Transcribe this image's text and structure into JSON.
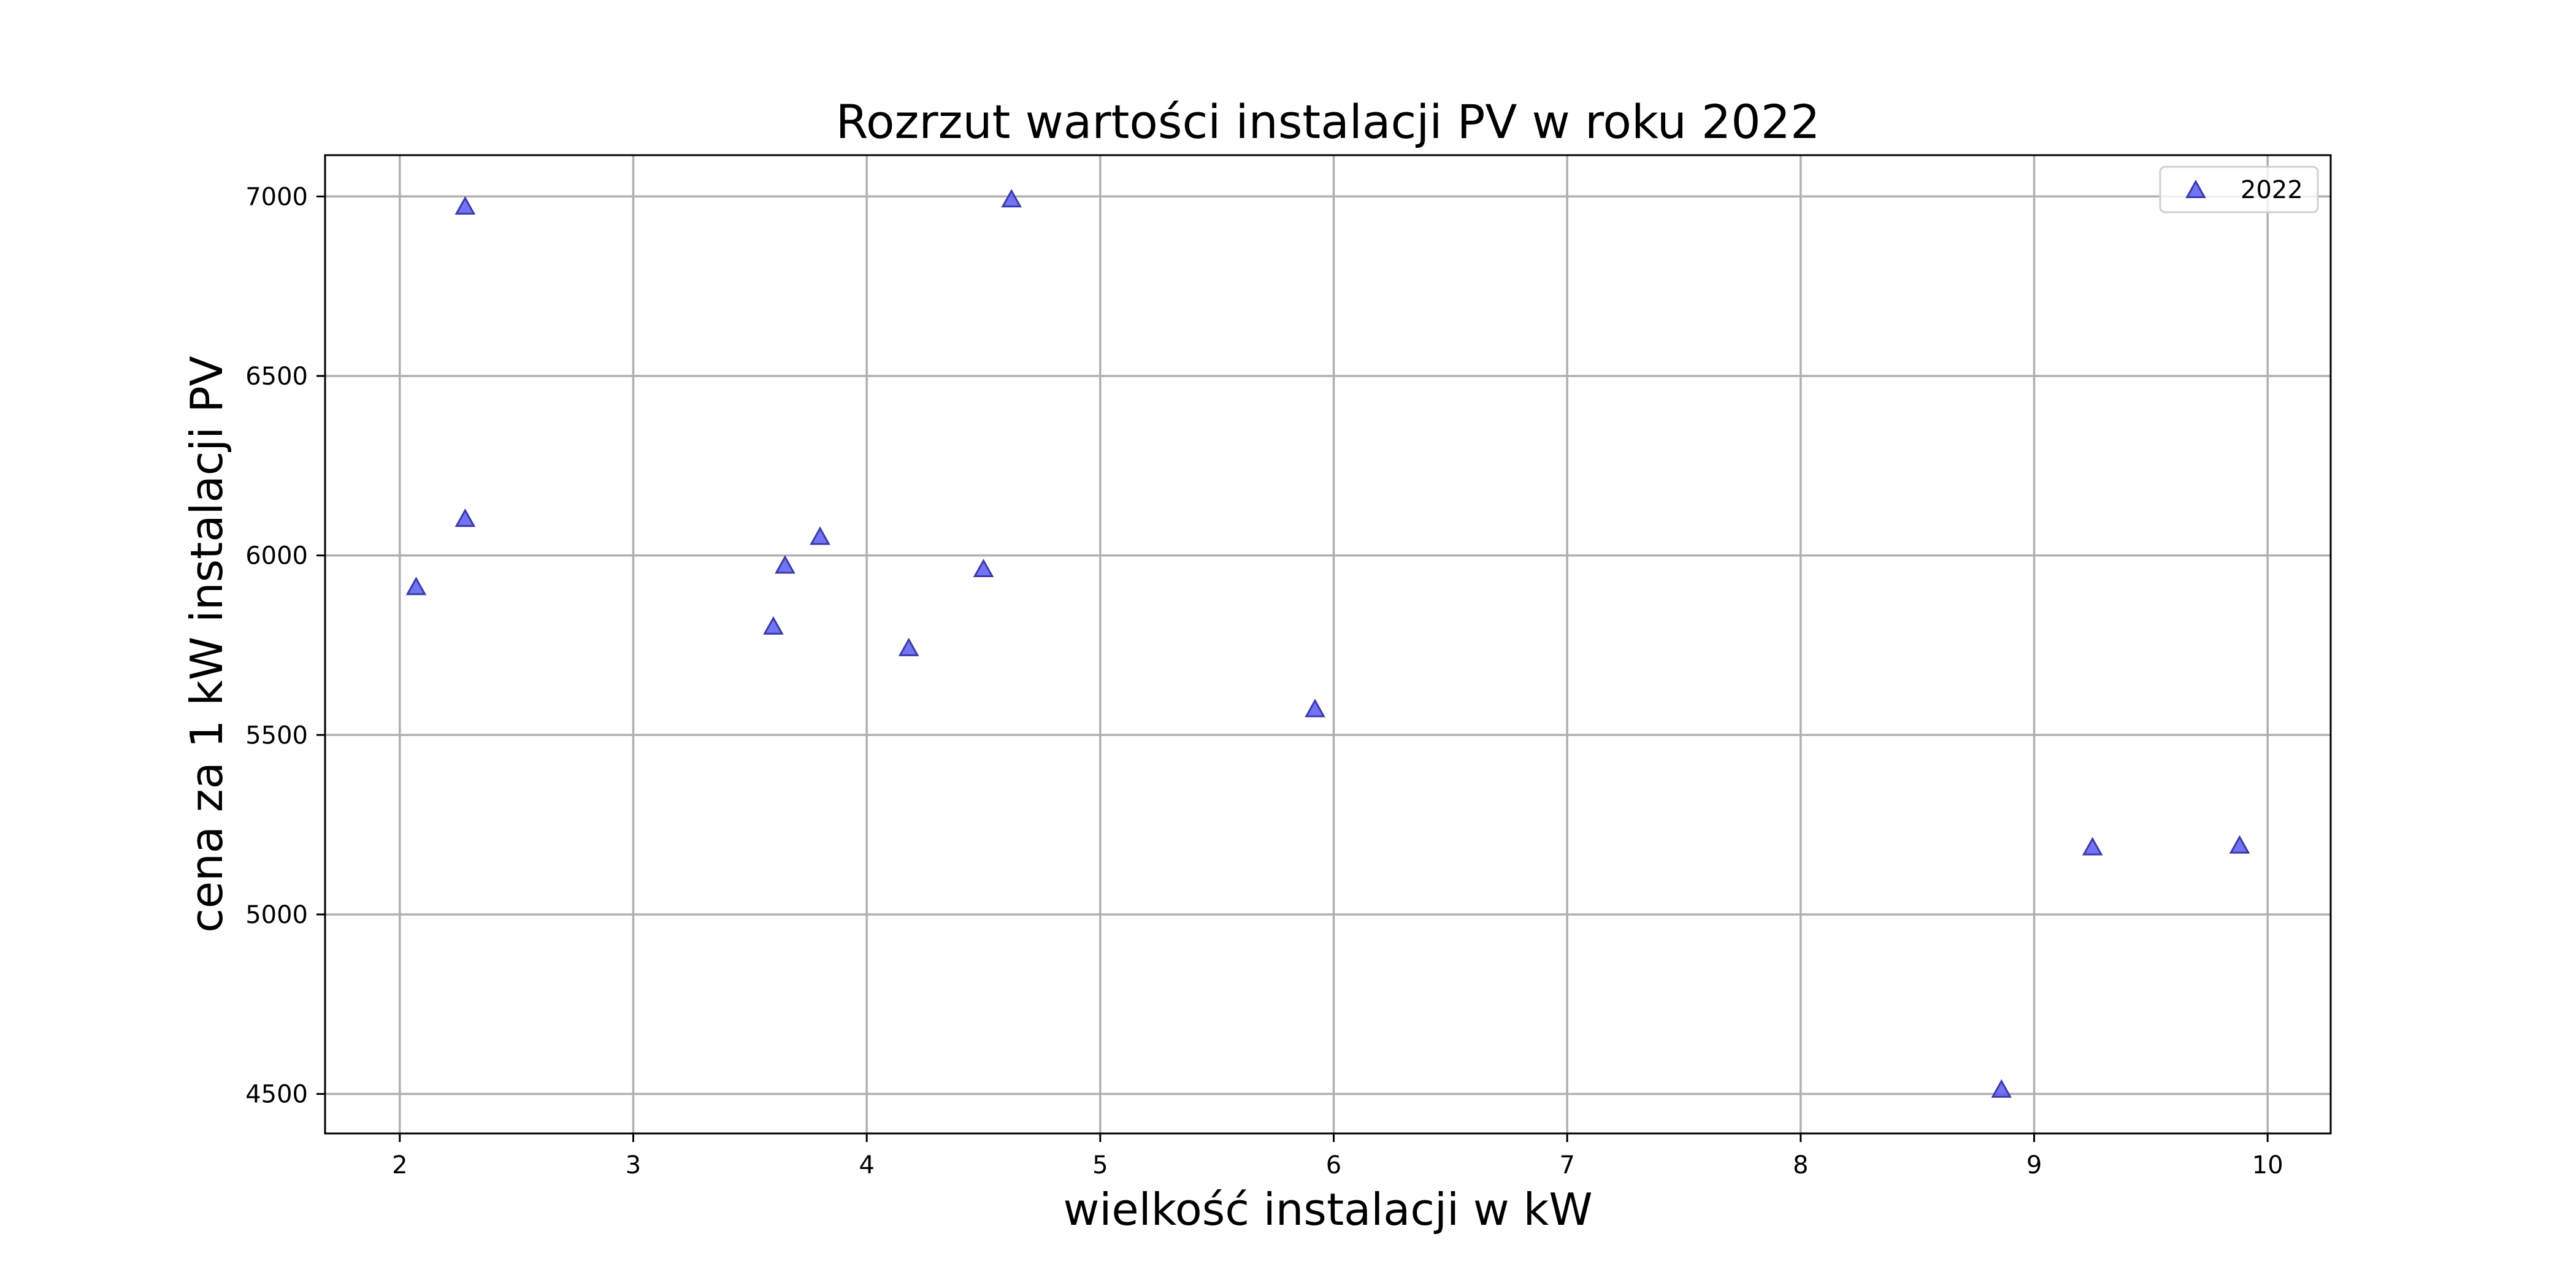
{
  "chart_data": {
    "type": "scatter",
    "title": "Rozrzut wartości instalacji PV w roku 2022",
    "xlabel": "wielkość instalacji w kW",
    "ylabel": "cena za 1 kW instalacji PV",
    "xlim": [
      1.68,
      10.27
    ],
    "ylim": [
      4390,
      7115
    ],
    "xticks": [
      2,
      3,
      4,
      5,
      6,
      7,
      8,
      9,
      10
    ],
    "yticks": [
      4500,
      5000,
      5500,
      6000,
      6500,
      7000
    ],
    "grid": true,
    "legend": {
      "position": "top-right",
      "entries": [
        "2022"
      ]
    },
    "series": [
      {
        "name": "2022",
        "marker": "triangle",
        "color": "#5b5bf5",
        "edge_color": "#3a3aa8",
        "points": [
          {
            "x": 2.07,
            "y": 5910
          },
          {
            "x": 2.28,
            "y": 6970
          },
          {
            "x": 2.28,
            "y": 6100
          },
          {
            "x": 3.6,
            "y": 5800
          },
          {
            "x": 3.65,
            "y": 5970
          },
          {
            "x": 3.8,
            "y": 6050
          },
          {
            "x": 4.18,
            "y": 5740
          },
          {
            "x": 4.5,
            "y": 5960
          },
          {
            "x": 4.62,
            "y": 6990
          },
          {
            "x": 5.92,
            "y": 5570
          },
          {
            "x": 8.86,
            "y": 4510
          },
          {
            "x": 9.25,
            "y": 5185
          },
          {
            "x": 9.88,
            "y": 5190
          }
        ]
      }
    ]
  }
}
